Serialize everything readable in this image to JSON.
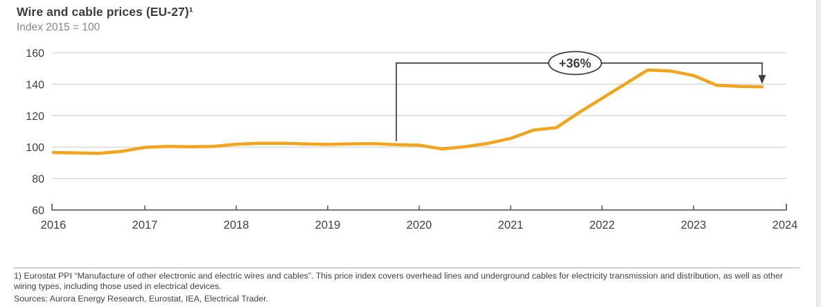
{
  "chart_data": {
    "type": "line",
    "title": "Wire and cable prices (EU-27)¹",
    "subtitle": "Index 2015 = 100",
    "x": [
      2016.0,
      2016.25,
      2016.5,
      2016.75,
      2017.0,
      2017.25,
      2017.5,
      2017.75,
      2018.0,
      2018.25,
      2018.5,
      2018.75,
      2019.0,
      2019.25,
      2019.5,
      2019.75,
      2020.0,
      2020.25,
      2020.5,
      2020.75,
      2021.0,
      2021.25,
      2021.5,
      2021.75,
      2022.0,
      2022.25,
      2022.5,
      2022.75,
      2023.0,
      2023.25,
      2023.5,
      2023.75
    ],
    "series": [
      {
        "name": "Wire and cable price index (EU-27)",
        "values": [
          96.5,
          96.3,
          96.0,
          97.3,
          99.8,
          100.4,
          100.2,
          100.4,
          101.8,
          102.4,
          102.4,
          102.0,
          101.7,
          102.0,
          102.2,
          101.5,
          101.2,
          98.8,
          100.2,
          102.3,
          105.5,
          110.8,
          112.3,
          122.0,
          131.0,
          140.0,
          149.0,
          148.3,
          145.5,
          139.3,
          138.6,
          138.3
        ]
      }
    ],
    "xlim": [
      2016,
      2024
    ],
    "ylim": [
      60,
      160
    ],
    "xticks": [
      2016,
      2017,
      2018,
      2019,
      2020,
      2021,
      2022,
      2023,
      2024
    ],
    "yticks": [
      60,
      80,
      100,
      120,
      140,
      160
    ],
    "grid": "horizontal",
    "legend": "none",
    "line_color": "#F2A51C",
    "axis_color": "#4a4a49",
    "gridline_color": "#c9c9c9",
    "text_color": "#3e3e3d",
    "annotation": {
      "label": "+36%",
      "from_x": 2019.75,
      "to_x": 2023.75
    }
  },
  "footnote": {
    "note": "1) Eurostat PPI “Manufacture of other electronic and electric wires and cables”. This price index covers overhead lines and underground cables for electricity transmission and distribution, as well as other wiring types, including those used in electrical devices.",
    "sources": "Sources: Aurora Energy Research, Eurostat, IEA, Electrical Trader."
  }
}
